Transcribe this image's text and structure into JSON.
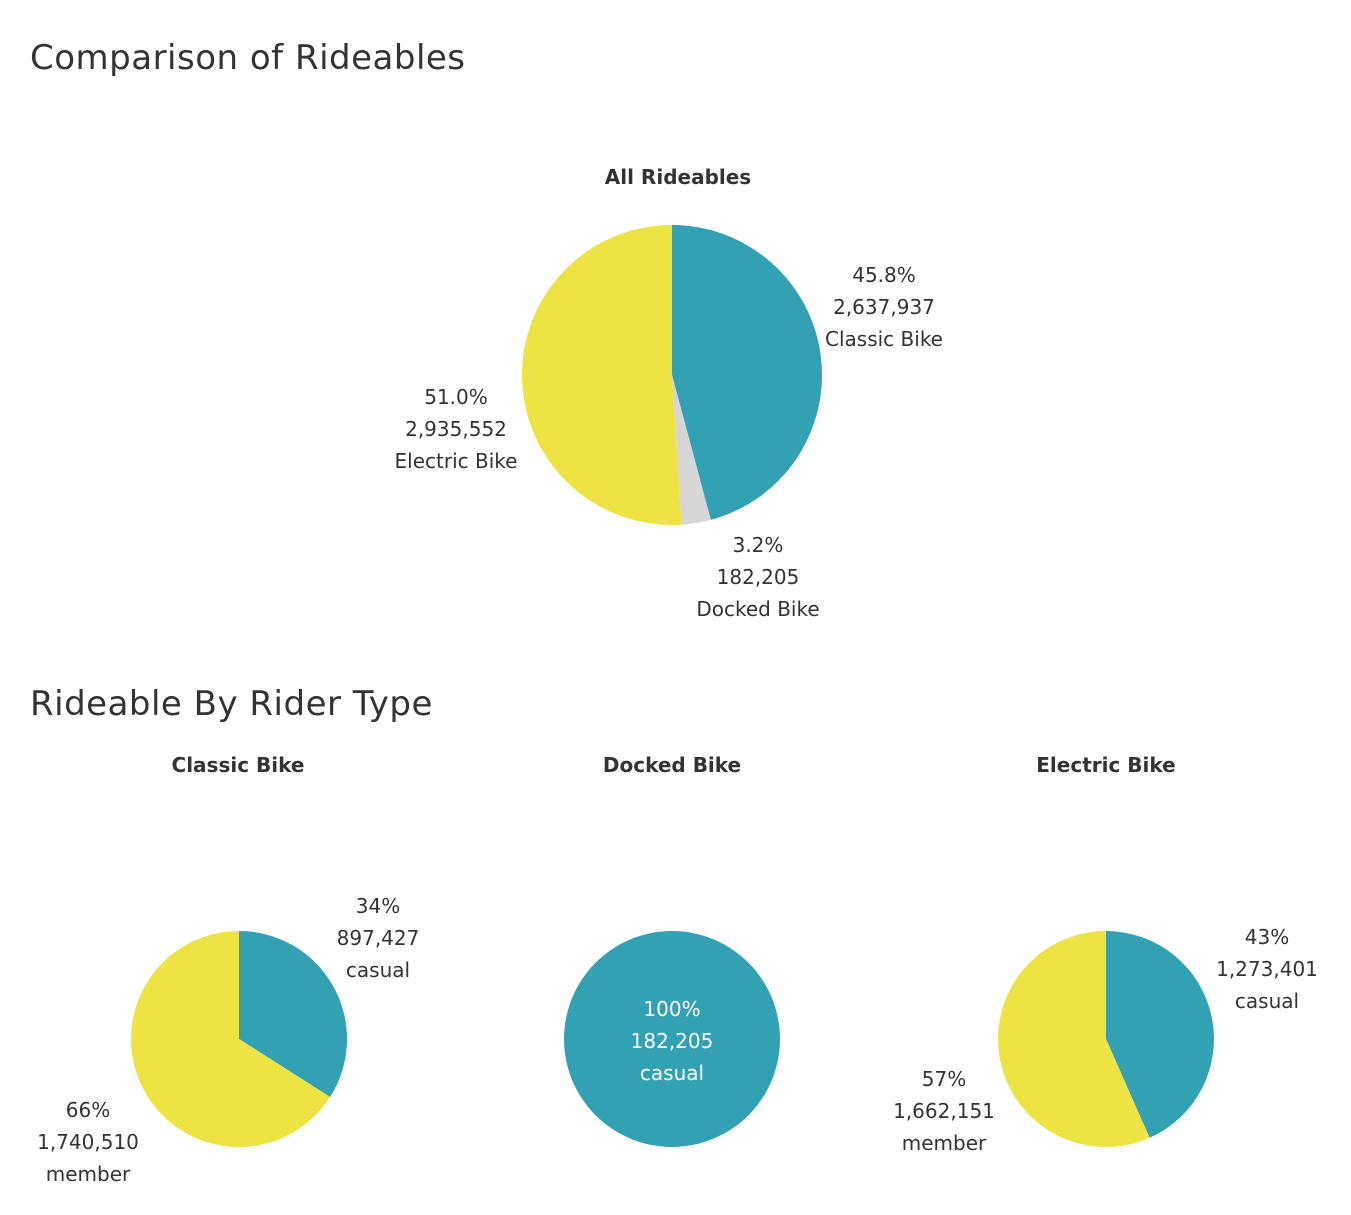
{
  "titles": {
    "main": "Comparison of Rideables",
    "sub": "Rideable By Rider Type"
  },
  "colors": {
    "classic_or_casual": "#33A1B4",
    "electric_or_member": "#EDE443",
    "docked": "#D6D6D6"
  },
  "chart_data": [
    {
      "type": "pie",
      "title": "All Rideables",
      "slices": [
        {
          "label": "Classic Bike",
          "value": 2637937,
          "percent": "45.8%",
          "value_text": "2,637,937",
          "color": "#33A1B4"
        },
        {
          "label": "Docked Bike",
          "value": 182205,
          "percent": "3.2%",
          "value_text": "182,205",
          "color": "#D6D6D6"
        },
        {
          "label": "Electric Bike",
          "value": 2935552,
          "percent": "51.0%",
          "value_text": "2,935,552",
          "color": "#EDE443"
        }
      ]
    },
    {
      "type": "pie",
      "title": "Classic Bike",
      "slices": [
        {
          "label": "casual",
          "value": 897427,
          "percent": "34%",
          "value_text": "897,427",
          "color": "#33A1B4"
        },
        {
          "label": "member",
          "value": 1740510,
          "percent": "66%",
          "value_text": "1,740,510",
          "color": "#EDE443"
        }
      ]
    },
    {
      "type": "pie",
      "title": "Docked Bike",
      "slices": [
        {
          "label": "casual",
          "value": 182205,
          "percent": "100%",
          "value_text": "182,205",
          "color": "#33A1B4"
        }
      ]
    },
    {
      "type": "pie",
      "title": "Electric Bike",
      "slices": [
        {
          "label": "casual",
          "value": 1273401,
          "percent": "43%",
          "value_text": "1,273,401",
          "color": "#33A1B4"
        },
        {
          "label": "member",
          "value": 1662151,
          "percent": "57%",
          "value_text": "1,662,151",
          "color": "#EDE443"
        }
      ]
    }
  ]
}
